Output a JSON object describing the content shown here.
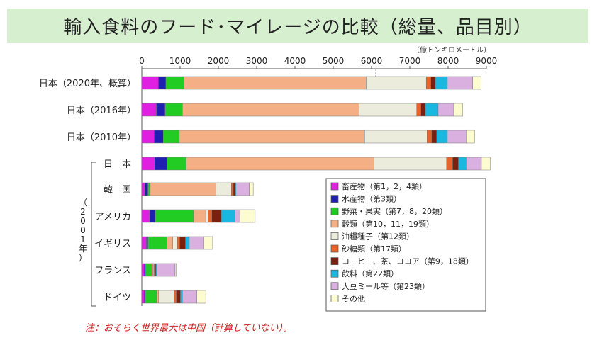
{
  "title": "輸入食料のフード･マイレージの比較（総量、品目別）",
  "note": "注：おそらく世界最大は中国（計算していない）。",
  "chart_data": {
    "type": "bar",
    "orientation": "horizontal",
    "stacked": true,
    "unit": "（億トンキロメートル）",
    "xlim": [
      0,
      9000
    ],
    "xticks": [
      0,
      1000,
      2000,
      3000,
      4000,
      5000,
      6000,
      7000,
      8000,
      9000
    ],
    "group_label": "（2001年）",
    "group_label_chars": [
      "（",
      "2",
      "0",
      "0",
      "1",
      "年",
      "）"
    ],
    "categories": [
      "日本（2020年、概算）",
      "日本（2016年）",
      "日本（2010年）",
      "日　本",
      "韓　国",
      "アメリカ",
      "イギリス",
      "フランス",
      "ドイツ"
    ],
    "series": [
      {
        "name": "畜産物（第1，2，4類）",
        "color": "#e020e0",
        "values": [
          430,
          380,
          320,
          330,
          80,
          200,
          120,
          60,
          60
        ]
      },
      {
        "name": "水産物（第3類）",
        "color": "#2020b0",
        "values": [
          200,
          230,
          240,
          330,
          80,
          150,
          40,
          40,
          30
        ]
      },
      {
        "name": "野菜・果実（第7，8，20類）",
        "color": "#22cc22",
        "values": [
          470,
          450,
          420,
          500,
          60,
          1000,
          500,
          150,
          300
        ]
      },
      {
        "name": "穀類（第10，11，19類）",
        "color": "#f4b084",
        "values": [
          4760,
          4620,
          4840,
          4900,
          1720,
          320,
          150,
          40,
          50
        ]
      },
      {
        "name": "油糧種子（第12類）",
        "color": "#ececdc",
        "values": [
          1570,
          1500,
          1630,
          1900,
          400,
          60,
          120,
          20,
          410
        ]
      },
      {
        "name": "砂糖類（第17類）",
        "color": "#e8642a",
        "values": [
          120,
          110,
          120,
          160,
          50,
          100,
          60,
          20,
          50
        ]
      },
      {
        "name": "コーヒー、茶、ココア（第9，18類）",
        "color": "#7a2010",
        "values": [
          120,
          120,
          130,
          150,
          40,
          250,
          150,
          40,
          110
        ]
      },
      {
        "name": "飲料（第22類）",
        "color": "#1ab8e0",
        "values": [
          310,
          330,
          280,
          200,
          30,
          350,
          100,
          30,
          50
        ]
      },
      {
        "name": "大豆ミール等（第23類）",
        "color": "#d9b0e0",
        "values": [
          660,
          410,
          490,
          400,
          350,
          130,
          380,
          470,
          380
        ]
      },
      {
        "name": "その他",
        "color": "#fdfbd0",
        "values": [
          220,
          230,
          220,
          230,
          100,
          400,
          230,
          30,
          230
        ]
      }
    ],
    "grid": false,
    "legend_position": "lower-right"
  }
}
